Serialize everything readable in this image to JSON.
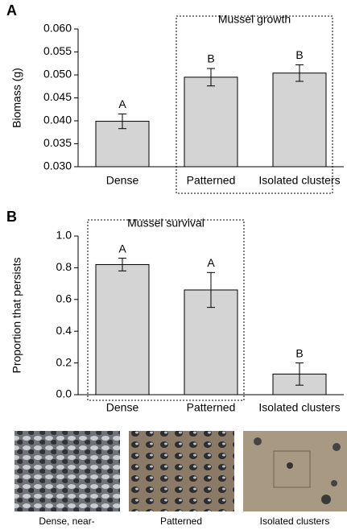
{
  "chart_data": [
    {
      "type": "bar",
      "panel": "A",
      "y_label": "Biomass (g)",
      "categories": [
        "Dense",
        "Patterned",
        "Isolated clusters"
      ],
      "values": [
        0.0399,
        0.0495,
        0.0504
      ],
      "errors": [
        0.0016,
        0.0019,
        0.0018
      ],
      "annotations": [
        "A",
        "B",
        "B"
      ],
      "box_annotation": {
        "text": "Mussel growth",
        "span": [
          1,
          2
        ]
      },
      "color": "#d4d4d4",
      "ylim": [
        0.03,
        0.06
      ],
      "yticks": [
        {
          "value": 0.03,
          "label": "0.030"
        },
        0.035,
        {
          "value": 0.04,
          "label": "0.040"
        },
        0.045,
        {
          "value": 0.05,
          "label": "0.050"
        },
        0.055,
        {
          "value": 0.06,
          "label": "0.060"
        }
      ]
    },
    {
      "type": "bar",
      "panel": "B",
      "y_label": "Proportion that persists",
      "categories": [
        "Dense",
        "Patterned",
        "Isolated clusters"
      ],
      "values": [
        0.82,
        0.66,
        0.13
      ],
      "errors": [
        0.04,
        0.11,
        0.07
      ],
      "annotations": [
        "A",
        "A",
        "B"
      ],
      "box_annotation": {
        "text": "Mussel survival",
        "span": [
          0,
          1
        ]
      },
      "color": "#d4d4d4",
      "ylim": [
        0,
        1
      ],
      "yticks": [
        {
          "value": 0,
          "label": "0.0"
        },
        0.2,
        0.4,
        0.6,
        0.8,
        {
          "value": 1,
          "label": "1.0"
        }
      ]
    }
  ],
  "photos": [
    {
      "caption": "Dense, near-"
    },
    {
      "caption": "Patterned"
    },
    {
      "caption": "Isolated clusters"
    }
  ]
}
